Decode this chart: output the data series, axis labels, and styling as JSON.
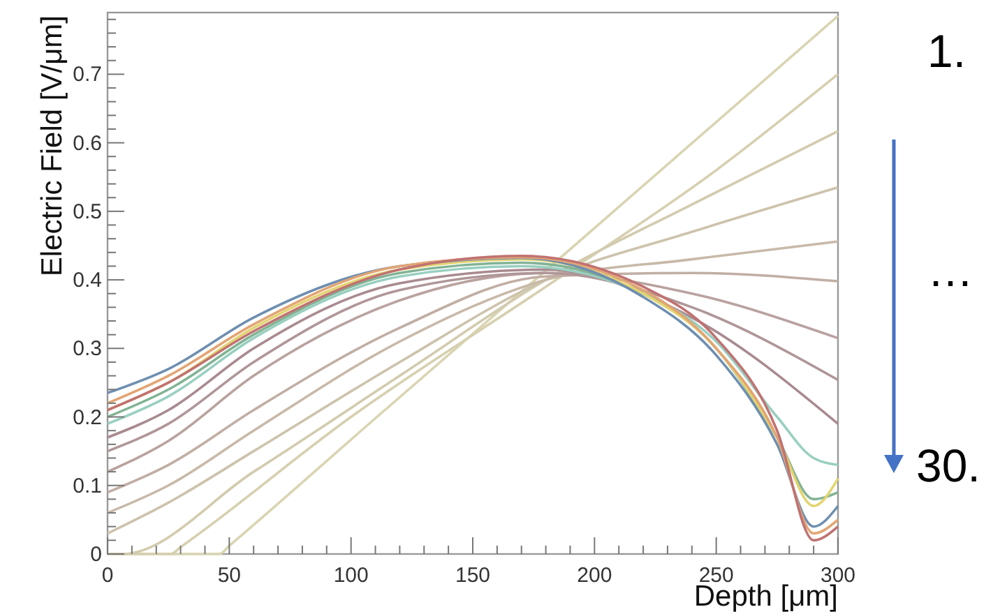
{
  "chart_data": {
    "type": "line",
    "xlabel": "Depth [μm]",
    "ylabel": "Electric Field  [V/μm]",
    "xlim": [
      0,
      300
    ],
    "ylim": [
      0,
      0.79
    ],
    "xticks": [
      0,
      {
        "value": 10,
        "label": null
      },
      {
        "value": 20,
        "label": null
      },
      {
        "value": 30,
        "label": null
      },
      {
        "value": 40,
        "label": null
      },
      50,
      {
        "value": 60,
        "label": null
      },
      {
        "value": 70,
        "label": null
      },
      {
        "value": 80,
        "label": null
      },
      {
        "value": 90,
        "label": null
      },
      100,
      {
        "value": 110,
        "label": null
      },
      {
        "value": 120,
        "label": null
      },
      {
        "value": 130,
        "label": null
      },
      {
        "value": 140,
        "label": null
      },
      150,
      {
        "value": 160,
        "label": null
      },
      {
        "value": 170,
        "label": null
      },
      {
        "value": 180,
        "label": null
      },
      {
        "value": 190,
        "label": null
      },
      200,
      {
        "value": 210,
        "label": null
      },
      {
        "value": 220,
        "label": null
      },
      {
        "value": 230,
        "label": null
      },
      {
        "value": 240,
        "label": null
      },
      250,
      {
        "value": 260,
        "label": null
      },
      {
        "value": 270,
        "label": null
      },
      {
        "value": 280,
        "label": null
      },
      {
        "value": 290,
        "label": null
      },
      300
    ],
    "yticks": [
      0,
      {
        "value": 0.02,
        "label": null
      },
      {
        "value": 0.04,
        "label": null
      },
      {
        "value": 0.06,
        "label": null
      },
      {
        "value": 0.08,
        "label": null
      },
      0.1,
      {
        "value": 0.12,
        "label": null
      },
      {
        "value": 0.14,
        "label": null
      },
      {
        "value": 0.16,
        "label": null
      },
      {
        "value": 0.18,
        "label": null
      },
      0.2,
      {
        "value": 0.22,
        "label": null
      },
      {
        "value": 0.24,
        "label": null
      },
      {
        "value": 0.26,
        "label": null
      },
      {
        "value": 0.28,
        "label": null
      },
      0.3,
      {
        "value": 0.32,
        "label": null
      },
      {
        "value": 0.34,
        "label": null
      },
      {
        "value": 0.36,
        "label": null
      },
      {
        "value": 0.38,
        "label": null
      },
      0.4,
      {
        "value": 0.42,
        "label": null
      },
      {
        "value": 0.44,
        "label": null
      },
      {
        "value": 0.46,
        "label": null
      },
      {
        "value": 0.48,
        "label": null
      },
      0.5,
      {
        "value": 0.52,
        "label": null
      },
      {
        "value": 0.54,
        "label": null
      },
      {
        "value": 0.56,
        "label": null
      },
      {
        "value": 0.58,
        "label": null
      },
      0.6,
      {
        "value": 0.62,
        "label": null
      },
      {
        "value": 0.64,
        "label": null
      },
      {
        "value": 0.66,
        "label": null
      },
      {
        "value": 0.68,
        "label": null
      },
      0.7,
      {
        "value": 0.72,
        "label": null
      },
      {
        "value": 0.74,
        "label": null
      },
      {
        "value": 0.76,
        "label": null
      },
      {
        "value": 0.78,
        "label": null
      }
    ],
    "grid": false,
    "marker": "none",
    "line_style": "solid",
    "annotations": [
      "1.",
      "…",
      "30."
    ],
    "series": [
      {
        "color": "#d9d5b3",
        "x": [
          0,
          46,
          50,
          110,
          173,
          237,
          300
        ],
        "values": [
          0,
          0,
          0.012,
          0.198,
          0.392,
          0.59,
          0.785
        ]
      },
      {
        "color": "#d6d0b0",
        "x": [
          0,
          26,
          30,
          100,
          180,
          250,
          300
        ],
        "values": [
          0,
          0,
          0.01,
          0.2,
          0.39,
          0.56,
          0.7
        ]
      },
      {
        "color": "#d2cbae",
        "x": [
          0,
          6,
          60,
          120,
          180,
          240,
          300
        ],
        "values": [
          0,
          0,
          0.12,
          0.26,
          0.4,
          0.51,
          0.617
        ]
      },
      {
        "color": "#cdc3ac",
        "x": [
          0,
          25,
          60,
          120,
          180,
          240,
          300
        ],
        "values": [
          0.03,
          0.075,
          0.15,
          0.28,
          0.4,
          0.47,
          0.535
        ]
      },
      {
        "color": "#c8b9a8",
        "x": [
          0,
          25,
          60,
          120,
          180,
          240,
          300
        ],
        "values": [
          0.06,
          0.1,
          0.18,
          0.31,
          0.4,
          0.43,
          0.456
        ]
      },
      {
        "color": "#c1aea4",
        "x": [
          0,
          25,
          60,
          120,
          180,
          240,
          300
        ],
        "values": [
          0.09,
          0.13,
          0.21,
          0.33,
          0.405,
          0.41,
          0.398
        ]
      },
      {
        "color": "#b9a29f",
        "x": [
          0,
          25,
          60,
          120,
          180,
          240,
          300
        ],
        "values": [
          0.12,
          0.165,
          0.26,
          0.37,
          0.41,
          0.38,
          0.315
        ]
      },
      {
        "color": "#b09698",
        "x": [
          0,
          25,
          60,
          120,
          180,
          240,
          300
        ],
        "values": [
          0.15,
          0.19,
          0.28,
          0.385,
          0.41,
          0.36,
          0.254
        ]
      },
      {
        "color": "#a88a8f",
        "x": [
          0,
          25,
          60,
          120,
          180,
          240,
          300
        ],
        "values": [
          0.17,
          0.21,
          0.3,
          0.395,
          0.415,
          0.345,
          0.19
        ]
      },
      {
        "color": "#99cfc0",
        "x": [
          0,
          25,
          60,
          120,
          170,
          220,
          250,
          275,
          290,
          300
        ],
        "values": [
          0.19,
          0.23,
          0.315,
          0.405,
          0.42,
          0.38,
          0.31,
          0.2,
          0.14,
          0.13
        ]
      },
      {
        "color": "#82b394",
        "x": [
          0,
          25,
          60,
          120,
          170,
          220,
          250,
          275,
          290,
          300
        ],
        "values": [
          0.2,
          0.24,
          0.32,
          0.41,
          0.425,
          0.38,
          0.3,
          0.17,
          0.08,
          0.09
        ]
      },
      {
        "color": "#e3d471",
        "x": [
          0,
          25,
          60,
          120,
          170,
          220,
          250,
          275,
          290,
          300
        ],
        "values": [
          0.21,
          0.25,
          0.33,
          0.415,
          0.43,
          0.38,
          0.3,
          0.17,
          0.07,
          0.11
        ]
      },
      {
        "color": "#6f8fb0",
        "x": [
          0,
          25,
          60,
          120,
          170,
          220,
          250,
          275,
          290,
          300
        ],
        "values": [
          0.235,
          0.27,
          0.345,
          0.42,
          0.432,
          0.375,
          0.29,
          0.16,
          0.04,
          0.07
        ]
      },
      {
        "color": "#e2a574",
        "x": [
          0,
          25,
          60,
          120,
          170,
          220,
          250,
          275,
          290,
          300
        ],
        "values": [
          0.22,
          0.26,
          0.335,
          0.42,
          0.433,
          0.385,
          0.3,
          0.17,
          0.03,
          0.05
        ]
      },
      {
        "color": "#c07272",
        "x": [
          0,
          25,
          60,
          120,
          170,
          220,
          250,
          275,
          290,
          300
        ],
        "values": [
          0.21,
          0.25,
          0.325,
          0.415,
          0.435,
          0.39,
          0.315,
          0.18,
          0.02,
          0.04
        ]
      }
    ]
  }
}
